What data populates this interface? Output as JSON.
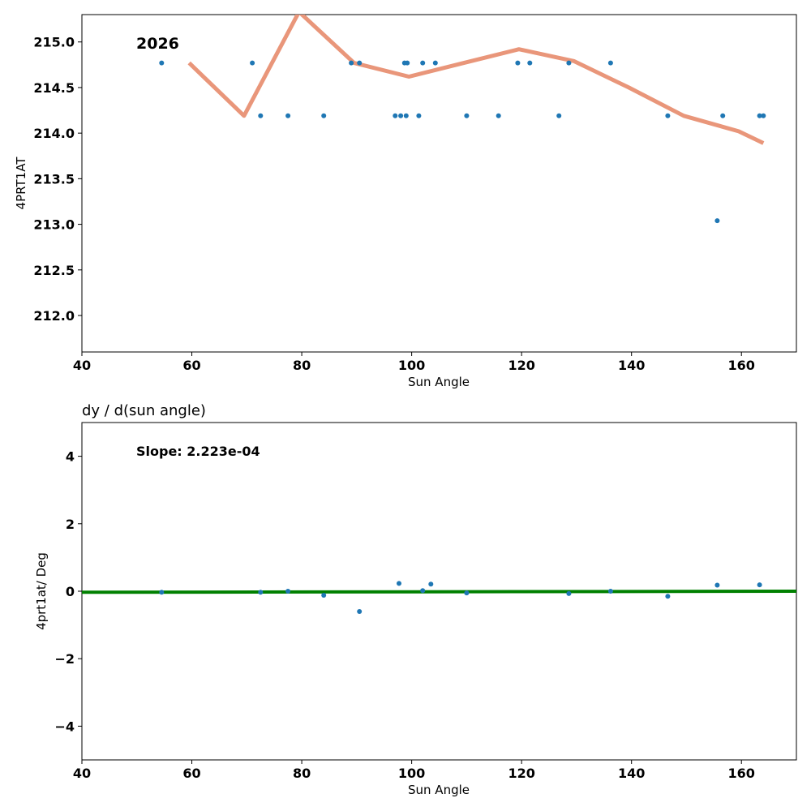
{
  "chart_data": [
    {
      "type": "scatter",
      "title": "",
      "xlabel": "Sun Angle",
      "ylabel": "4PRT1AT",
      "xlim": [
        40,
        170
      ],
      "ylim": [
        211.6,
        215.3
      ],
      "xticks": [
        "40",
        "60",
        "80",
        "100",
        "120",
        "140",
        "160"
      ],
      "yticks": [
        "212.0",
        "212.5",
        "213.0",
        "213.5",
        "214.0",
        "214.5",
        "215.0"
      ],
      "annotation": "2026",
      "colors": {
        "points": "#1f77b4",
        "line": "#e9967a"
      },
      "series": [
        {
          "type": "scatter",
          "x": [
            54.5,
            71,
            72.5,
            77.5,
            84,
            89,
            90.5,
            97,
            98,
            98.7,
            99,
            99.2,
            101.3,
            102,
            104.3,
            110,
            115.8,
            119.3,
            121.5,
            126.8,
            128.6,
            136.2,
            146.6,
            155.6,
            156.6,
            163.3,
            164
          ],
          "y": [
            214.77,
            214.77,
            214.19,
            214.19,
            214.19,
            214.77,
            214.77,
            214.19,
            214.19,
            214.77,
            214.19,
            214.77,
            214.19,
            214.77,
            214.77,
            214.19,
            214.19,
            214.77,
            214.77,
            214.19,
            214.77,
            214.77,
            214.19,
            213.04,
            214.19,
            214.19,
            214.19
          ]
        },
        {
          "type": "line",
          "x": [
            59.5,
            69.5,
            79.5,
            89.5,
            99.5,
            109.5,
            119.5,
            129.5,
            139.5,
            149.5,
            159.5,
            164
          ],
          "y": [
            214.77,
            214.19,
            215.33,
            214.77,
            214.62,
            214.77,
            214.92,
            214.79,
            214.5,
            214.19,
            214.02,
            213.89
          ]
        }
      ]
    },
    {
      "type": "scatter",
      "title": "dy / d(sun angle)",
      "xlabel": "Sun Angle",
      "ylabel": "4prt1at/ Deg",
      "xlim": [
        40,
        170
      ],
      "ylim": [
        -5,
        5
      ],
      "xticks": [
        "40",
        "60",
        "80",
        "100",
        "120",
        "140",
        "160"
      ],
      "yticks": [
        "−4",
        "−2",
        "0",
        "2",
        "4"
      ],
      "annotation": "Slope: 2.223e-04",
      "colors": {
        "points": "#1f77b4",
        "line": "#008000"
      },
      "series": [
        {
          "type": "scatter",
          "x": [
            54.5,
            72.5,
            77.5,
            84,
            90.5,
            97.7,
            102,
            103.5,
            110,
            128.6,
            136.2,
            146.6,
            155.6,
            163.3
          ],
          "y": [
            -0.03,
            -0.03,
            0.0,
            -0.12,
            -0.6,
            0.23,
            0.02,
            0.21,
            -0.05,
            -0.07,
            0.0,
            -0.15,
            0.18,
            0.19
          ]
        },
        {
          "type": "line",
          "x": [
            40,
            170
          ],
          "y": [
            -0.031,
            0.0
          ]
        }
      ]
    }
  ]
}
